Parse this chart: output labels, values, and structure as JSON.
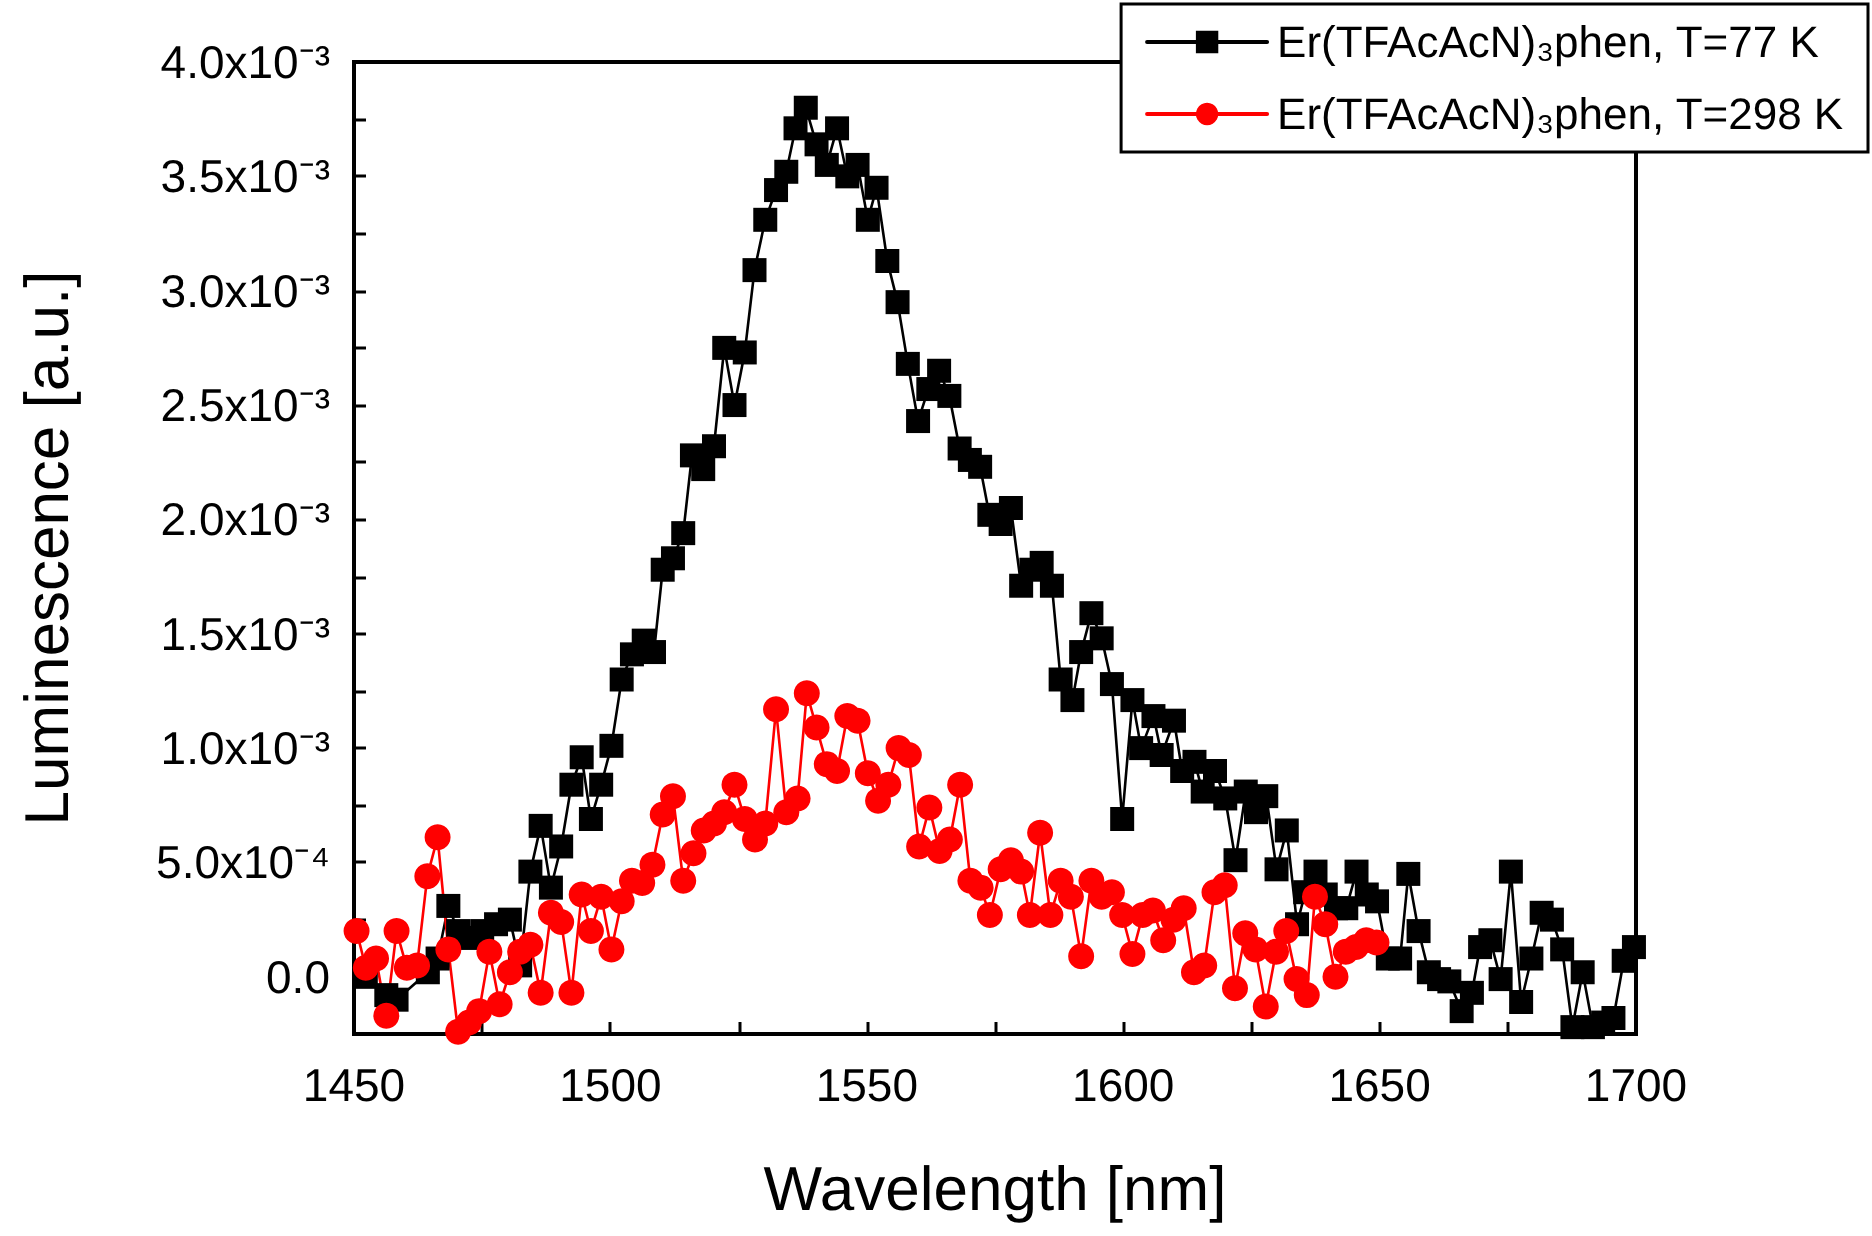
{
  "chart_data": {
    "type": "line",
    "xlabel": "Wavelength [nm]",
    "ylabel": "Luminescence [a.u.]",
    "xlim": [
      1450,
      1700
    ],
    "xticks": [
      1450,
      1500,
      1550,
      1600,
      1650,
      1700
    ],
    "ylim": [
      -0.00025,
      0.004
    ],
    "yticks": [
      {
        "value": 0,
        "label": "0.0"
      },
      {
        "value": 0.0005,
        "label": "5.0x10⁻⁴"
      },
      {
        "value": 0.001,
        "label": "1.0x10⁻³"
      },
      {
        "value": 0.0015,
        "label": "1.5x10⁻³"
      },
      {
        "value": 0.002,
        "label": "2.0x10⁻³"
      },
      {
        "value": 0.0025,
        "label": "2.5x10⁻³"
      },
      {
        "value": 0.003,
        "label": "3.0x10⁻³"
      },
      {
        "value": 0.0035,
        "label": "3.5x10⁻³"
      },
      {
        "value": 0.004,
        "label": "4.0x10⁻³"
      }
    ],
    "legend": "top right",
    "grid": false,
    "line_style": "solid",
    "series": [
      {
        "name": "Er(TFAcAcN)₃phen, T=77 K",
        "color": "#000000",
        "marker": "square",
        "x": [
          1452.3,
          1456.3,
          1458.3,
          1464.4,
          1466.3,
          1468.4,
          1470.3,
          1472.4,
          1475,
          1477.7,
          1480.4,
          1482.4,
          1484.4,
          1486.4,
          1488.4,
          1490.4,
          1492.4,
          1494.4,
          1496.2,
          1498.2,
          1500.2,
          1502.2,
          1504.2,
          1506.5,
          1508.5,
          1510.2,
          1512.2,
          1514.2,
          1515.9,
          1518.1,
          1520.2,
          1522.2,
          1524.2,
          1526.2,
          1528.1,
          1530.2,
          1532.3,
          1534.3,
          1536.1,
          1538.1,
          1540.2,
          1542.2,
          1544.2,
          1546.2,
          1548.2,
          1550.2,
          1551.9,
          1554,
          1556,
          1558,
          1560,
          1562,
          1564.1,
          1566.1,
          1568.1,
          1570.1,
          1572.1,
          1573.9,
          1576.1,
          1578.1,
          1580.1,
          1582.1,
          1584.1,
          1586.1,
          1587.8,
          1590.1,
          1591.8,
          1593.8,
          1595.8,
          1597.8,
          1599.8,
          1601.8,
          1603.5,
          1605.9,
          1607.5,
          1609.9,
          1611.5,
          1613.9,
          1615.5,
          1617.9,
          1619.9,
          1621.9,
          1623.9,
          1625.9,
          1627.9,
          1629.9,
          1631.9,
          1633.9,
          1635.5,
          1637.5,
          1639.5,
          1641.5,
          1643.5,
          1645.5,
          1647.5,
          1649.5,
          1651.6,
          1654,
          1655.6,
          1657.6,
          1659.6,
          1661.6,
          1663.6,
          1666,
          1668,
          1669.6,
          1671.6,
          1673.6,
          1675.6,
          1677.6,
          1679.6,
          1681.6,
          1683.6,
          1685.6,
          1687.6,
          1689.6,
          1691.6,
          1693.6,
          1695.6,
          1697.6,
          1699.6
        ],
        "values": [
          0.0,
          -8e-05,
          -0.0001,
          2e-05,
          8e-05,
          0.00031,
          0.0002,
          0.00017,
          0.0002,
          0.00023,
          0.00025,
          5e-05,
          0.00046,
          0.00066,
          0.00039,
          0.00057,
          0.00084,
          0.00096,
          0.00069,
          0.00084,
          0.00101,
          0.0013,
          0.00141,
          0.00147,
          0.00142,
          0.00178,
          0.00183,
          0.00194,
          0.00228,
          0.00222,
          0.00232,
          0.00275,
          0.0025,
          0.00273,
          0.00309,
          0.00331,
          0.00344,
          0.00352,
          0.00371,
          0.0038,
          0.00364,
          0.00355,
          0.00371,
          0.0035,
          0.00355,
          0.00331,
          0.00345,
          0.00313,
          0.00295,
          0.00268,
          0.00243,
          0.00257,
          0.00265,
          0.00254,
          0.00231,
          0.00226,
          0.00223,
          0.00202,
          0.00198,
          0.00205,
          0.00171,
          0.00178,
          0.00181,
          0.00171,
          0.0013,
          0.00121,
          0.00142,
          0.00159,
          0.00148,
          0.00128,
          0.00069,
          0.00121,
          0.001,
          0.00114,
          0.00097,
          0.00112,
          0.0009,
          0.00094,
          0.00081,
          0.0009,
          0.00078,
          0.00051,
          0.00081,
          0.00072,
          0.00079,
          0.00047,
          0.00064,
          0.00023,
          0.00037,
          0.00046,
          0.00036,
          0.0003,
          0.0003,
          0.00046,
          0.00036,
          0.00033,
          8e-05,
          8e-05,
          0.00045,
          0.0002,
          2e-05,
          -1e-05,
          -2e-05,
          -0.00015,
          -7e-05,
          0.00013,
          0.00016,
          -1e-05,
          0.00046,
          -0.00011,
          8e-05,
          0.00028,
          0.00025,
          0.00012,
          -0.00022,
          2e-05,
          -0.00022,
          -0.0002,
          -0.00018,
          7e-05,
          0.00013
        ]
      },
      {
        "name": "Er(TFAcAcN)₃phen, T=298 K",
        "color": "#ff0000",
        "marker": "circle",
        "x": [
          1450.5,
          1452.3,
          1454.3,
          1456.3,
          1458.3,
          1460.3,
          1462.3,
          1464.3,
          1466.3,
          1468.4,
          1470.3,
          1472.4,
          1474.4,
          1476.4,
          1478.4,
          1480.4,
          1482.4,
          1484.4,
          1486.4,
          1488.4,
          1490.4,
          1492.4,
          1494.4,
          1496.2,
          1498.2,
          1500.2,
          1502.2,
          1504.2,
          1506.2,
          1508.2,
          1510.2,
          1512.2,
          1514.2,
          1516.2,
          1518.2,
          1520.2,
          1522.2,
          1524.2,
          1526.2,
          1528.2,
          1530.2,
          1532.3,
          1534.3,
          1536.5,
          1538.3,
          1540.2,
          1542.2,
          1544.2,
          1546.2,
          1548.2,
          1550.2,
          1552.2,
          1554.2,
          1556.2,
          1558.2,
          1560.2,
          1562.2,
          1564.2,
          1566.2,
          1568.2,
          1570.2,
          1572.2,
          1574,
          1576.1,
          1578.1,
          1580.1,
          1581.8,
          1583.8,
          1585.8,
          1587.8,
          1589.8,
          1591.8,
          1593.8,
          1595.8,
          1597.8,
          1599.8,
          1601.8,
          1603.8,
          1605.8,
          1607.8,
          1609.8,
          1611.8,
          1613.8,
          1615.8,
          1617.8,
          1619.8,
          1621.8,
          1623.8,
          1625.8,
          1627.8,
          1629.8,
          1631.8,
          1633.8,
          1635.8,
          1637.4,
          1639.4,
          1641.4,
          1643.4,
          1645.4,
          1647.4,
          1649.4
        ],
        "values": [
          0.0002,
          4e-05,
          8e-05,
          -0.00017,
          0.0002,
          4e-05,
          5e-05,
          0.00044,
          0.00061,
          0.00012,
          -0.00024,
          -0.0002,
          -0.00015,
          0.00011,
          -0.00012,
          2e-05,
          0.00011,
          0.00014,
          -7e-05,
          0.00028,
          0.00024,
          -7e-05,
          0.00036,
          0.0002,
          0.00035,
          0.00012,
          0.00033,
          0.00042,
          0.00041,
          0.00049,
          0.00071,
          0.00079,
          0.00042,
          0.00054,
          0.00064,
          0.00067,
          0.00072,
          0.00084,
          0.00069,
          0.0006,
          0.00067,
          0.00117,
          0.00072,
          0.00078,
          0.00124,
          0.00109,
          0.00093,
          0.0009,
          0.00114,
          0.00112,
          0.00089,
          0.00077,
          0.00084,
          0.001,
          0.00097,
          0.00057,
          0.00074,
          0.00055,
          0.0006,
          0.00084,
          0.00042,
          0.00039,
          0.00027,
          0.00047,
          0.00051,
          0.00046,
          0.00027,
          0.00063,
          0.00027,
          0.00042,
          0.00035,
          9e-05,
          0.00042,
          0.00035,
          0.00037,
          0.00027,
          0.0001,
          0.00027,
          0.00029,
          0.00016,
          0.00025,
          0.0003,
          2e-05,
          5e-05,
          0.00037,
          0.0004,
          -5e-05,
          0.00019,
          0.00012,
          -0.00013,
          0.00011,
          0.0002,
          -1e-05,
          -8e-05,
          0.00035,
          0.00023,
          0.0,
          0.00011,
          0.00013,
          0.00016,
          0.00015
        ]
      }
    ]
  }
}
